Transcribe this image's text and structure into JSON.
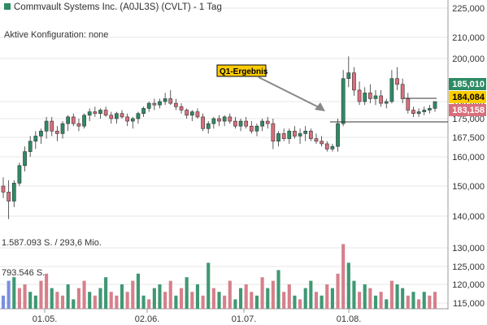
{
  "header": {
    "title": "Commvault Systems Inc. (A0JL3S) (CVLT) - 1 Tag",
    "config": "Aktive Konfiguration: none"
  },
  "volume_labels": {
    "top": "1.587.093 S. / 293,6 Mio.",
    "mid": "793.546 S."
  },
  "annotation": {
    "label": "Q1-Ergebnis"
  },
  "colors": {
    "up": "#2e8b66",
    "down": "#d96f7c",
    "highlight_tag": "#ffcc00",
    "grid": "#d0d0d0",
    "vol_up": "#3f9873",
    "vol_down": "#d6808b",
    "vol_recent": "#7a8fe0"
  },
  "chart_data": {
    "type": "candlestick",
    "price_axis": {
      "ticks": [
        225000,
        210000,
        200000,
        185000,
        175000,
        167500,
        160000,
        150000,
        140000
      ],
      "tick_labels": [
        "225,000",
        "210,000",
        "200,000",
        "185,000",
        "175,000",
        "167,500",
        "160,000",
        "150,000",
        "140,000"
      ],
      "scale": "log"
    },
    "volume_axis": {
      "ticks": [
        130000,
        125000,
        120000,
        115000
      ],
      "tick_labels": [
        "130,000",
        "125,000",
        "120,000",
        "115,000"
      ]
    },
    "x_tick_labels": [
      "01.05.",
      "02.06.",
      "01.07.",
      "01.08."
    ],
    "price_tags": [
      {
        "value": "185,010",
        "color": "#2e8b66",
        "text_color": "#ffffff"
      },
      {
        "value": "184,084",
        "color": "#ffcc00",
        "text_color": "#000000"
      },
      {
        "value": "183,158",
        "color": "#d96f7c",
        "text_color": "#ffffff"
      }
    ],
    "candles": [
      [
        150,
        153,
        146,
        148
      ],
      [
        148,
        152,
        139,
        145
      ],
      [
        145,
        152,
        143,
        151
      ],
      [
        151,
        158,
        150,
        157
      ],
      [
        157,
        164,
        155,
        162
      ],
      [
        162,
        168,
        160,
        166
      ],
      [
        166,
        170,
        163,
        168
      ],
      [
        168,
        171,
        165,
        170
      ],
      [
        170,
        176,
        167,
        174
      ],
      [
        174,
        176,
        168,
        170
      ],
      [
        170,
        172,
        166,
        169
      ],
      [
        169,
        174,
        167,
        173
      ],
      [
        173,
        177,
        170,
        176
      ],
      [
        176,
        178,
        172,
        173
      ],
      [
        173,
        175,
        170,
        172
      ],
      [
        172,
        178,
        171,
        177
      ],
      [
        177,
        181,
        174,
        179
      ],
      [
        179,
        182,
        176,
        178
      ],
      [
        178,
        181,
        175,
        180
      ],
      [
        180,
        182,
        176,
        177
      ],
      [
        177,
        179,
        173,
        175
      ],
      [
        175,
        179,
        173,
        178
      ],
      [
        178,
        180,
        175,
        176
      ],
      [
        176,
        178,
        172,
        174
      ],
      [
        174,
        176,
        171,
        175
      ],
      [
        175,
        179,
        173,
        178
      ],
      [
        178,
        182,
        176,
        181
      ],
      [
        181,
        185,
        179,
        184
      ],
      [
        184,
        186,
        180,
        183
      ],
      [
        183,
        186,
        181,
        185
      ],
      [
        185,
        188,
        183,
        186
      ],
      [
        186,
        189,
        183,
        184
      ],
      [
        184,
        186,
        180,
        182
      ],
      [
        182,
        184,
        178,
        180
      ],
      [
        180,
        181,
        175,
        177
      ],
      [
        177,
        180,
        174,
        179
      ],
      [
        179,
        181,
        175,
        176
      ],
      [
        176,
        178,
        170,
        171
      ],
      [
        171,
        174,
        169,
        173
      ],
      [
        173,
        176,
        171,
        175
      ],
      [
        175,
        177,
        172,
        174
      ],
      [
        174,
        177,
        172,
        176
      ],
      [
        176,
        178,
        173,
        174
      ],
      [
        174,
        176,
        171,
        172
      ],
      [
        172,
        175,
        170,
        174
      ],
      [
        174,
        176,
        171,
        172
      ],
      [
        172,
        174,
        169,
        170
      ],
      [
        170,
        173,
        168,
        172
      ],
      [
        172,
        175,
        170,
        174
      ],
      [
        174,
        176,
        171,
        173
      ],
      [
        173,
        175,
        163,
        166
      ],
      [
        166,
        170,
        164,
        169
      ],
      [
        169,
        171,
        166,
        167
      ],
      [
        167,
        171,
        165,
        170
      ],
      [
        170,
        172,
        167,
        168
      ],
      [
        168,
        171,
        165,
        169
      ],
      [
        169,
        172,
        166,
        170
      ],
      [
        170,
        171,
        166,
        167
      ],
      [
        167,
        169,
        165,
        166
      ],
      [
        166,
        168,
        164,
        165
      ],
      [
        165,
        166,
        162,
        163
      ],
      [
        163,
        165,
        162,
        164
      ],
      [
        164,
        175,
        162,
        173
      ],
      [
        173,
        196,
        172,
        193
      ],
      [
        193,
        201,
        190,
        195
      ],
      [
        195,
        197,
        187,
        189
      ],
      [
        189,
        192,
        183,
        185
      ],
      [
        185,
        190,
        183,
        188
      ],
      [
        188,
        191,
        184,
        186
      ],
      [
        186,
        189,
        183,
        187
      ],
      [
        187,
        189,
        182,
        184
      ],
      [
        184,
        186,
        181,
        185
      ],
      [
        185,
        196,
        184,
        193
      ],
      [
        193,
        197,
        189,
        191
      ],
      [
        191,
        193,
        184,
        186
      ],
      [
        186,
        188,
        178,
        180
      ],
      [
        180,
        182,
        176,
        178
      ],
      [
        178,
        181,
        176,
        179
      ],
      [
        179,
        182,
        177,
        180
      ],
      [
        180,
        183,
        178,
        181
      ],
      [
        181,
        185,
        179,
        185
      ]
    ],
    "volume": [
      [
        117,
        0
      ],
      [
        121,
        1
      ],
      [
        122,
        1
      ],
      [
        119,
        0
      ],
      [
        120,
        0
      ],
      [
        118,
        1
      ],
      [
        117,
        1
      ],
      [
        121,
        0
      ],
      [
        123,
        0
      ],
      [
        119,
        1
      ],
      [
        118,
        0
      ],
      [
        117,
        0
      ],
      [
        120,
        1
      ],
      [
        116,
        1
      ],
      [
        119,
        0
      ],
      [
        121,
        0
      ],
      [
        118,
        1
      ],
      [
        117,
        0
      ],
      [
        119,
        1
      ],
      [
        122,
        1
      ],
      [
        118,
        0
      ],
      [
        117,
        0
      ],
      [
        120,
        1
      ],
      [
        118,
        0
      ],
      [
        121,
        0
      ],
      [
        123,
        1
      ],
      [
        117,
        1
      ],
      [
        116,
        0
      ],
      [
        119,
        1
      ],
      [
        120,
        1
      ],
      [
        118,
        0
      ],
      [
        121,
        0
      ],
      [
        117,
        1
      ],
      [
        119,
        0
      ],
      [
        122,
        1
      ],
      [
        118,
        0
      ],
      [
        120,
        1
      ],
      [
        117,
        0
      ],
      [
        126,
        1
      ],
      [
        119,
        0
      ],
      [
        118,
        1
      ],
      [
        117,
        0
      ],
      [
        121,
        0
      ],
      [
        116,
        1
      ],
      [
        119,
        1
      ],
      [
        120,
        0
      ],
      [
        118,
        0
      ],
      [
        117,
        1
      ],
      [
        122,
        0
      ],
      [
        119,
        1
      ],
      [
        121,
        0
      ],
      [
        124,
        1
      ],
      [
        118,
        0
      ],
      [
        120,
        0
      ],
      [
        117,
        1
      ],
      [
        116,
        0
      ],
      [
        119,
        1
      ],
      [
        121,
        1
      ],
      [
        118,
        0
      ],
      [
        117,
        1
      ],
      [
        120,
        0
      ],
      [
        119,
        1
      ],
      [
        123,
        0
      ],
      [
        131,
        0
      ],
      [
        126,
        1
      ],
      [
        121,
        1
      ],
      [
        118,
        0
      ],
      [
        120,
        1
      ],
      [
        119,
        0
      ],
      [
        117,
        1
      ],
      [
        118,
        0
      ],
      [
        116,
        1
      ],
      [
        121,
        0
      ],
      [
        120,
        1
      ],
      [
        119,
        1
      ],
      [
        117,
        0
      ],
      [
        118,
        1
      ],
      [
        116,
        0
      ],
      [
        118,
        1
      ],
      [
        117,
        0
      ],
      [
        118,
        0
      ]
    ]
  }
}
